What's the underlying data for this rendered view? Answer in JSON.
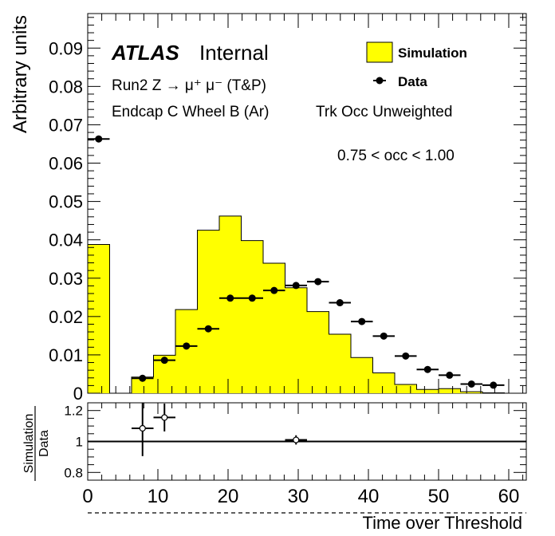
{
  "chart_data": [
    {
      "type": "bar",
      "title": "",
      "xlabel": "",
      "ylabel": "Arbitrary units",
      "xlim": [
        0,
        62.5
      ],
      "ylim": [
        0,
        0.099
      ],
      "ytick_labels": [
        "0",
        "0.01",
        "0.02",
        "0.03",
        "0.04",
        "0.05",
        "0.06",
        "0.07",
        "0.08",
        "0.09"
      ],
      "ytick_values": [
        0,
        0.01,
        0.02,
        0.03,
        0.04,
        0.05,
        0.06,
        0.07,
        0.08,
        0.09
      ],
      "grid": false,
      "legend_position": "top-right",
      "annotations": {
        "atlas": "ATLAS",
        "internal": "Internal",
        "process": "Run2 Z → μ⁺ μ⁻ (T&P)",
        "region": "Endcap C Wheel B (Ar)",
        "weighting": "Trk Occ Unweighted",
        "occupancy": "0.75 < occ < 1.00"
      },
      "series": [
        {
          "name": "Simulation",
          "style": "filled-histogram",
          "color": "#ffff00",
          "bin_edges": [
            0,
            3.125,
            6.25,
            9.375,
            12.5,
            15.625,
            18.75,
            21.875,
            25,
            28.125,
            31.25,
            34.375,
            37.5,
            40.625,
            43.75,
            46.875,
            50,
            53.125,
            56.25,
            59.375,
            62.5
          ],
          "values": [
            0.0388,
            0,
            0.0042,
            0.0099,
            0.0218,
            0.0425,
            0.0462,
            0.0398,
            0.0339,
            0.0275,
            0.0213,
            0.0154,
            0.0093,
            0.0053,
            0.0023,
            0.001,
            0.0012,
            0.0004,
            0.0001,
            0
          ]
        },
        {
          "name": "Data",
          "style": "points-with-errors",
          "color": "#000000",
          "x": [
            1.5625,
            7.8125,
            10.9375,
            14.0625,
            17.1875,
            20.3125,
            23.4375,
            26.5625,
            29.6875,
            32.8125,
            35.9375,
            39.0625,
            42.1875,
            45.3125,
            48.4375,
            51.5625,
            54.6875,
            57.8125
          ],
          "y": [
            0.0663,
            0.0039,
            0.0086,
            0.0123,
            0.0168,
            0.0248,
            0.0248,
            0.0268,
            0.0281,
            0.0291,
            0.0236,
            0.0187,
            0.0149,
            0.0097,
            0.0062,
            0.0047,
            0.0024,
            0.0021
          ],
          "x_err": 1.5625
        }
      ]
    },
    {
      "type": "scatter",
      "title": "",
      "ylabel": "Simulation / Data",
      "ylabel_numerator": "Simulation",
      "ylabel_denominator": "Data",
      "xlabel": "Time over Threshold",
      "xlim": [
        0,
        62.5
      ],
      "ylim": [
        0.75,
        1.25
      ],
      "ytick_labels": [
        "0.8",
        "1",
        "1.2"
      ],
      "ytick_values": [
        0.8,
        1.0,
        1.2
      ],
      "xtick_labels": [
        "0",
        "10",
        "20",
        "30",
        "40",
        "50",
        "60"
      ],
      "xtick_values": [
        0,
        10,
        20,
        30,
        40,
        50,
        60
      ],
      "reference_line": 1.0,
      "grid": false,
      "series": [
        {
          "name": "Simulation/Data",
          "x": [
            7.8125,
            10.9375,
            29.6875
          ],
          "y": [
            1.085,
            1.155,
            1.01
          ],
          "y_err": [
            0.18,
            0.09,
            0.03
          ],
          "x_err": 1.5625
        }
      ]
    }
  ],
  "legend": {
    "simulation_label": "Simulation",
    "data_label": "Data",
    "simulation_color": "#ffff00"
  }
}
